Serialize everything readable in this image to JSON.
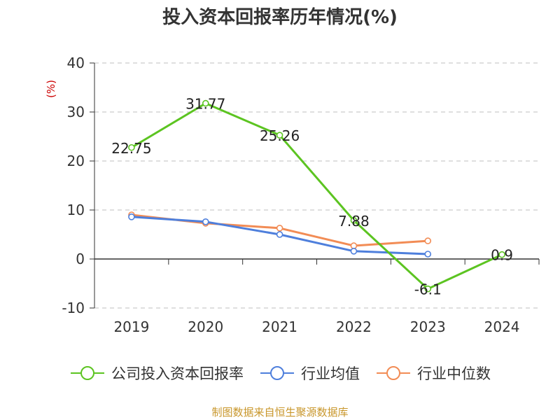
{
  "title": "投入资本回报率历年情况(%)",
  "source": "制图数据来自恒生聚源数据库",
  "chart_data": {
    "type": "line",
    "categories": [
      "2019",
      "2020",
      "2021",
      "2022",
      "2023",
      "2024"
    ],
    "ylabel": "(%)",
    "ylim": [
      -10,
      40
    ],
    "yticks": [
      -10,
      0,
      10,
      20,
      30,
      40
    ],
    "grid": true,
    "legend_position": "bottom",
    "series": [
      {
        "name": "公司投入资本回报率",
        "color": "#5cc421",
        "values": [
          22.75,
          31.77,
          25.26,
          7.88,
          -6.1,
          0.9
        ],
        "labels": [
          "22.75",
          "31.77",
          "25.26",
          "7.88",
          "-6.1",
          "0.9"
        ]
      },
      {
        "name": "行业均值",
        "color": "#4e7fdc",
        "values": [
          8.6,
          7.6,
          5.0,
          1.6,
          1.0,
          null
        ]
      },
      {
        "name": "行业中位数",
        "color": "#f28c55",
        "values": [
          9.0,
          7.3,
          6.3,
          2.7,
          3.7,
          null
        ]
      }
    ]
  }
}
